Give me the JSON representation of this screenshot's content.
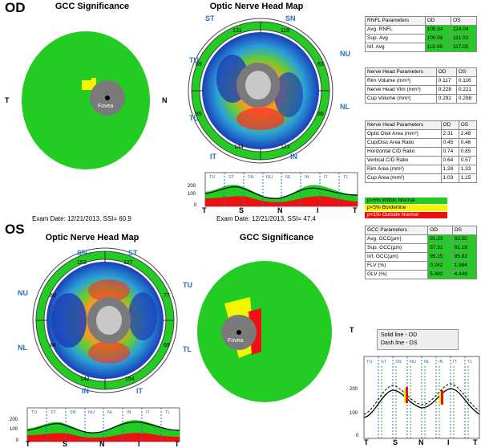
{
  "od": {
    "label": "OD",
    "gcc_title": "GCC Significance",
    "onh_title": "Optic Nerve Head Map",
    "fovea_label": "Fovea",
    "side_t": "T",
    "side_n": "N",
    "exam_left": "Exam Date: 12/21/2013, SSI= 60.9",
    "exam_right": "Exam Date: 12/21/2013, SSI= 47.4",
    "sectors": {
      "st": "ST",
      "sn": "SN",
      "nu": "NU",
      "nl": "NL",
      "in": "IN",
      "it": "IT",
      "tl": "TL",
      "tu": "TU"
    },
    "values": {
      "top_left": "131",
      "top_right": "119",
      "right_top": "83",
      "right_bottom": "86",
      "bottom_left": "144",
      "bottom_right": "123",
      "left_top": "69",
      "left_bottom": "85"
    },
    "tsnit": {
      "y_ticks": [
        "200",
        "100",
        "0"
      ],
      "segments": [
        "TU",
        "ST",
        "SN",
        "NU",
        "NL",
        "IN",
        "IT",
        "TL"
      ],
      "x_letters": [
        "T",
        "S",
        "N",
        "I",
        "T"
      ]
    }
  },
  "os": {
    "label": "OS",
    "onh_title": "Optic Nerve Head Map",
    "gcc_title": "GCC Significance",
    "fovea_label": "Fovea",
    "side_t": "T",
    "sectors": {
      "sn": "SN",
      "st": "ST",
      "nu": "NU",
      "tu": "TU",
      "nl": "NL",
      "tl": "TL",
      "in": "IN",
      "it": "IT"
    },
    "values": {
      "top_left": "153",
      "top_right": "127",
      "right_top": "77",
      "right_bottom": "69",
      "bottom_left": "142",
      "bottom_right": "154",
      "left_top": "80",
      "left_bottom": "84"
    },
    "tsnit": {
      "y_ticks": [
        "200",
        "100",
        "0"
      ],
      "segments": [
        "TU",
        "ST",
        "SN",
        "NU",
        "NL",
        "IN",
        "IT",
        "TL"
      ],
      "x_letters": [
        "T",
        "S",
        "N",
        "I",
        "T"
      ]
    }
  },
  "compare": {
    "solid": "Solid line - OD",
    "dash": "Dash line - OS",
    "y_ticks": [
      "200",
      "100",
      "0"
    ],
    "segments": [
      "TU",
      "ST",
      "SN",
      "NU",
      "NL",
      "IN",
      "IT",
      "TL"
    ],
    "x_letters": [
      "T",
      "S",
      "N",
      "I",
      "T"
    ]
  },
  "rnfl_table": {
    "headers": [
      "RNFL Parameters",
      "OD",
      "OS"
    ],
    "rows": [
      {
        "label": "Avg. RNFL",
        "od": "105.34",
        "os": "114.04"
      },
      {
        "label": "Sup. Avg",
        "od": "100.58",
        "os": "111.03"
      },
      {
        "label": "Inf. Avg",
        "od": "110.09",
        "os": "117.05"
      }
    ]
  },
  "nh_table": {
    "headers": [
      "Nerve Head Parameters",
      "OD",
      "OS"
    ],
    "rows": [
      {
        "label": "Rim Volume (mm³)",
        "od": "0.117",
        "os": "0.116"
      },
      {
        "label": "Nerve Head Vlm (mm³)",
        "od": "0.228",
        "os": "0.221"
      },
      {
        "label": "Cup Volume (mm³)",
        "od": "0.292",
        "os": "0.298"
      }
    ]
  },
  "nh2_table": {
    "headers": [
      "Nerve Head Parameters",
      "OD",
      "OS"
    ],
    "rows": [
      {
        "label": "Optic Disk Area (mm²)",
        "od": "2.31",
        "os": "2.48"
      },
      {
        "label": "Cup/Disc Area Ratio",
        "od": "0.45",
        "os": "0.46"
      },
      {
        "label": "Horizontal C/D Ratio",
        "od": "0.74",
        "os": "0.85"
      },
      {
        "label": "Vertical C/D Ratio",
        "od": "0.64",
        "os": "0.57"
      },
      {
        "label": "Rim Area (mm²)",
        "od": "1.28",
        "os": "1.33"
      },
      {
        "label": "Cup Area (mm²)",
        "od": "1.03",
        "os": "1.15"
      }
    ]
  },
  "legend": {
    "within": "p>5% Within Normal",
    "borderline": "p<5% Borderline",
    "outside": "p<1% Outside Normal"
  },
  "gcc_table": {
    "headers": [
      "GCC Parameters",
      "OD",
      "OS"
    ],
    "rows": [
      {
        "label": "Avg. GCC(µm)",
        "od": "91.23",
        "os": "93.50"
      },
      {
        "label": "Sup. GCC(µm)",
        "od": "87.31",
        "os": "91.18"
      },
      {
        "label": "Inf. GCC(µm)",
        "od": "95.15",
        "os": "95.82"
      },
      {
        "label": "FLV (%)",
        "od": "0.242",
        "os": "1.984"
      },
      {
        "label": "GLV (%)",
        "od": "5.482",
        "os": "4.449"
      }
    ]
  },
  "colors": {
    "green": "#22cc22",
    "yellow": "#f5f500",
    "red": "#ee1111",
    "blue": "#3a7bd5"
  }
}
